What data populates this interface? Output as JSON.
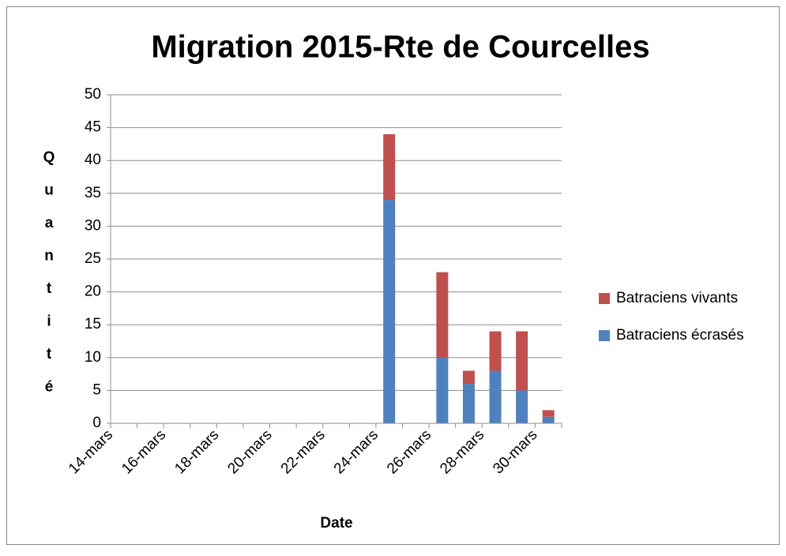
{
  "chart_data": {
    "type": "stacked_bar",
    "title": "Migration 2015-Rte de Courcelles",
    "x_label": "Date",
    "y_label": "Quantité",
    "categories": [
      "14-mars",
      null,
      "16-mars",
      null,
      "18-mars",
      null,
      "20-mars",
      null,
      "22-mars",
      null,
      "24-mars",
      null,
      "26-mars",
      null,
      "28-mars",
      null,
      "30-mars"
    ],
    "series": [
      {
        "name": "Batraciens écrasés",
        "color": "#4f81bd",
        "values": [
          0,
          0,
          0,
          0,
          0,
          0,
          0,
          0,
          0,
          0,
          34,
          0,
          10,
          6,
          8,
          5,
          1
        ]
      },
      {
        "name": "Batraciens vivants",
        "color": "#c0504d",
        "values": [
          0,
          0,
          0,
          0,
          0,
          0,
          0,
          0,
          0,
          0,
          10,
          0,
          13,
          2,
          6,
          9,
          1
        ]
      }
    ],
    "ylim": [
      0,
      50
    ],
    "yticks": [
      0,
      5,
      10,
      15,
      20,
      25,
      30,
      35,
      40,
      45,
      50
    ],
    "grid": true,
    "legend": "right"
  }
}
